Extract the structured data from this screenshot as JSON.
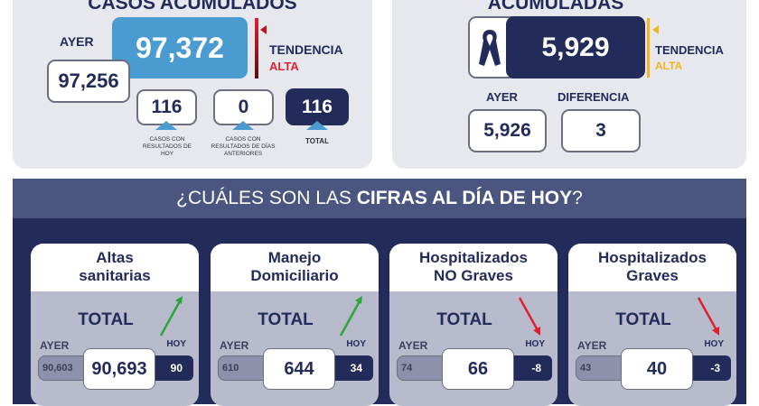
{
  "cases": {
    "title": "CASOS ACUMULADOS",
    "total": "97,372",
    "ayer_label": "AYER",
    "ayer": "97,256",
    "trend_label": "TENDENCIA",
    "trend": "ALTA",
    "breakdown": [
      {
        "value": "116",
        "caption": "CASOS CON RESULTADOS DE HOY"
      },
      {
        "value": "0",
        "caption": "CASOS CON RESULTADOS DE DÍAS ANTERIORES"
      },
      {
        "value": "116",
        "caption": "TOTAL"
      }
    ]
  },
  "deaths": {
    "title": "ACUMULADAS",
    "total": "5,929",
    "trend_label": "TENDENCIA",
    "trend": "ALTA",
    "ayer_label": "AYER",
    "ayer": "5,926",
    "diff_label": "DIFERENCIA",
    "diff": "3"
  },
  "today": {
    "title_pre": "¿CUÁLES SON LAS ",
    "title_bold": "CIFRAS AL DÍA DE HOY",
    "title_post": "?",
    "cards": [
      {
        "title1": "Altas",
        "title2": "sanitarias",
        "total_label": "TOTAL",
        "ayer_label": "AYER",
        "hoy_label": "HOY",
        "ayer": "90,603",
        "total": "90,693",
        "hoy": "90",
        "trend": "up"
      },
      {
        "title1": "Manejo",
        "title2": "Domiciliario",
        "total_label": "TOTAL",
        "ayer_label": "AYER",
        "hoy_label": "HOY",
        "ayer": "610",
        "total": "644",
        "hoy": "34",
        "trend": "up"
      },
      {
        "title1": "Hospitalizados",
        "title2": "NO Graves",
        "total_label": "TOTAL",
        "ayer_label": "AYER",
        "hoy_label": "HOY",
        "ayer": "74",
        "total": "66",
        "hoy": "-8",
        "trend": "down"
      },
      {
        "title1": "Hospitalizados",
        "title2": "Graves",
        "total_label": "TOTAL",
        "ayer_label": "AYER",
        "hoy_label": "HOY",
        "ayer": "43",
        "total": "40",
        "hoy": "-3",
        "trend": "down"
      }
    ]
  },
  "colors": {
    "navy": "#232b5a",
    "blue": "#4a9bd0",
    "red": "#e0202f",
    "yellow": "#f2b51c",
    "green": "#2aa63a"
  }
}
